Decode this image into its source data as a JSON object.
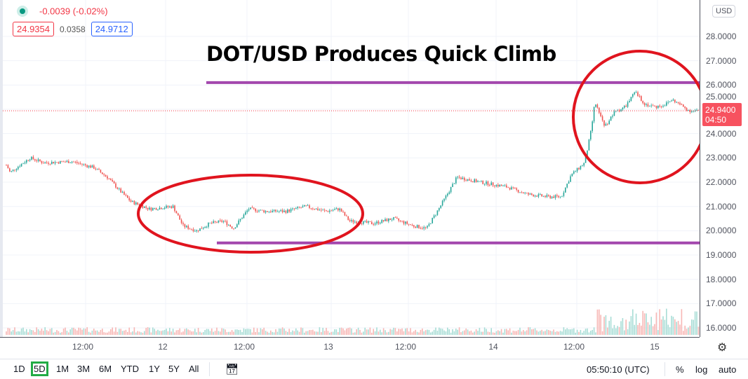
{
  "symbol_legend": {
    "change": "-0.0039 (-0.02%)",
    "bid": "24.9354",
    "spread": "0.0358",
    "ask": "24.9712"
  },
  "annotation": {
    "title": "DOT/USD Produces Quick Climb",
    "line_color": "#a347ad",
    "circle_color": "#e0141e",
    "resistance_level": 26.1,
    "support_level": 19.5
  },
  "price_axis": {
    "currency": "USD",
    "ticks": [
      "28.0000",
      "27.0000",
      "26.0000",
      "25.0000",
      "24.0000",
      "23.0000",
      "22.0000",
      "21.0000",
      "20.0000",
      "19.0000",
      "18.0000",
      "17.0000",
      "16.0000"
    ],
    "last_price": "24.9400",
    "countdown": "04:50"
  },
  "time_axis": {
    "labels": [
      "12:00",
      "12",
      "12:00",
      "13",
      "12:00",
      "14",
      "12:00",
      "15"
    ]
  },
  "chart_data": {
    "type": "candlestick",
    "ylim": [
      15.8,
      28.5
    ],
    "up_color": "#26a69a",
    "down_color": "#ef5350",
    "series": [
      {
        "t": "11 00:15",
        "v": 22.7
      },
      {
        "t": "11 00:45",
        "v": 22.4
      },
      {
        "t": "11 03:45",
        "v": 23.0
      },
      {
        "t": "11 05:45",
        "v": 22.8
      },
      {
        "t": "11 10:00",
        "v": 22.85
      },
      {
        "t": "11 13:15",
        "v": 22.6
      },
      {
        "t": "11 15:15",
        "v": 22.2
      },
      {
        "t": "11 17:15",
        "v": 21.6
      },
      {
        "t": "11 18:45",
        "v": 21.2
      },
      {
        "t": "11 21:30",
        "v": 20.9
      },
      {
        "t": "12 01:00",
        "v": 21.0
      },
      {
        "t": "12 02:30",
        "v": 20.2
      },
      {
        "t": "12 04:30",
        "v": 20.0
      },
      {
        "t": "12 06:30",
        "v": 20.3
      },
      {
        "t": "12 08:30",
        "v": 20.4
      },
      {
        "t": "12 10:00",
        "v": 20.1
      },
      {
        "t": "12 12:15",
        "v": 20.9
      },
      {
        "t": "12 14:45",
        "v": 20.8
      },
      {
        "t": "12 17:45",
        "v": 20.8
      },
      {
        "t": "12 20:45",
        "v": 21.0
      },
      {
        "t": "12 23:45",
        "v": 20.8
      },
      {
        "t": "13 01:45",
        "v": 20.9
      },
      {
        "t": "13 03:15",
        "v": 20.4
      },
      {
        "t": "13 06:45",
        "v": 20.3
      },
      {
        "t": "13 09:45",
        "v": 20.5
      },
      {
        "t": "13 12:45",
        "v": 20.2
      },
      {
        "t": "13 14:45",
        "v": 20.1
      },
      {
        "t": "13 16:45",
        "v": 21.0
      },
      {
        "t": "13 19:15",
        "v": 22.2
      },
      {
        "t": "13 22:45",
        "v": 22.0
      },
      {
        "t": "14 02:45",
        "v": 21.8
      },
      {
        "t": "14 05:45",
        "v": 21.5
      },
      {
        "t": "14 08:45",
        "v": 21.4
      },
      {
        "t": "14 10:45",
        "v": 21.4
      },
      {
        "t": "14 12:15",
        "v": 22.3
      },
      {
        "t": "14 14:15",
        "v": 22.8
      },
      {
        "t": "14 15:15",
        "v": 24.2
      },
      {
        "t": "14 15:45",
        "v": 25.3
      },
      {
        "t": "14 17:15",
        "v": 24.3
      },
      {
        "t": "14 18:45",
        "v": 24.9
      },
      {
        "t": "14 20:15",
        "v": 25.1
      },
      {
        "t": "14 21:45",
        "v": 25.7
      },
      {
        "t": "14 23:15",
        "v": 25.2
      },
      {
        "t": "15 00:45",
        "v": 25.1
      },
      {
        "t": "15 02:15",
        "v": 25.2
      },
      {
        "t": "15 03:15",
        "v": 25.4
      },
      {
        "t": "15 05:50",
        "v": 24.94
      }
    ]
  },
  "toolbar": {
    "ranges": [
      "1D",
      "5D",
      "1M",
      "3M",
      "6M",
      "YTD",
      "1Y",
      "5Y",
      "All"
    ],
    "selected": "5D",
    "clock": "05:50:10 (UTC)",
    "percent": "%",
    "log": "log",
    "auto": "auto"
  }
}
